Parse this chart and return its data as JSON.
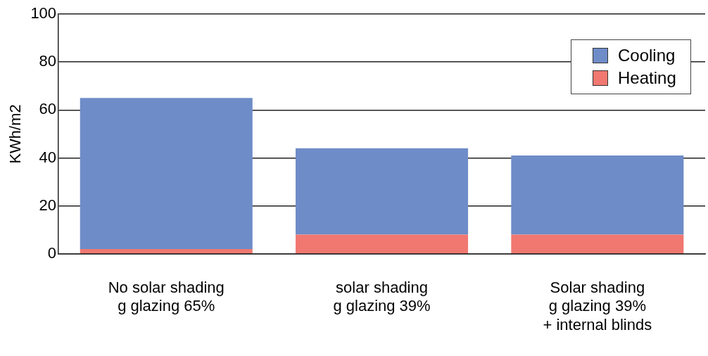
{
  "chart_data": {
    "type": "bar",
    "ylabel": "KWh/m2",
    "categories": [
      "No solar shading\ng glazing 65%",
      "solar shading\ng glazing 39%",
      "Solar shading\ng glazing 39%\n+ internal blinds"
    ],
    "series": [
      {
        "name": "Heating",
        "color": "#f07870",
        "values": [
          2,
          8,
          8
        ]
      },
      {
        "name": "Cooling",
        "color": "#6e8cc8",
        "values": [
          63,
          36,
          33
        ]
      }
    ],
    "stacked": true,
    "ylim": [
      0,
      100
    ],
    "yticks": [
      0,
      20,
      40,
      60,
      80,
      100
    ],
    "grid": "y",
    "legend": "top right"
  }
}
